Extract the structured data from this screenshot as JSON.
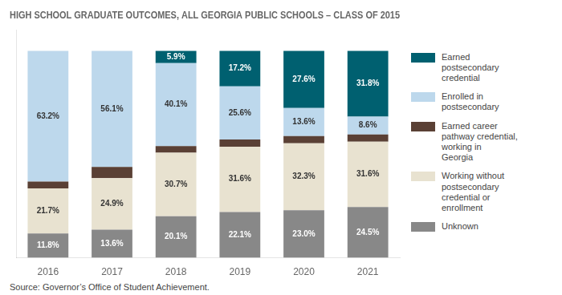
{
  "chart_data": {
    "type": "bar",
    "title": "HIGH SCHOOL GRADUATE OUTCOMES, ALL GEORGIA PUBLIC SCHOOLS – CLASS OF 2015",
    "categories": [
      "2016",
      "2017",
      "2018",
      "2019",
      "2020",
      "2021"
    ],
    "series": [
      {
        "name": "Unknown",
        "color": "#888888",
        "values": [
          11.8,
          13.6,
          20.1,
          22.1,
          23.0,
          24.5
        ],
        "value_labels": [
          "11.8%",
          "13.6%",
          "20.1%",
          "22.1%",
          "23.0%",
          "24.5%"
        ]
      },
      {
        "name": "Working without\npostsecondary\ncredential or\nenrollment",
        "color": "#E8E2D0",
        "values": [
          21.7,
          24.9,
          30.7,
          31.6,
          32.3,
          31.6
        ],
        "value_labels": [
          "21.7%",
          "24.9%",
          "30.7%",
          "31.6%",
          "32.3%",
          "31.6%"
        ]
      },
      {
        "name": "Earned career\npathway credential,\nworking in\nGeorgia",
        "color": "#5A4035",
        "values": [
          3.3,
          5.4,
          3.2,
          3.5,
          3.5,
          3.5
        ]
      },
      {
        "name": "Enrolled in\npostsecondary",
        "color": "#BDD8EC",
        "values": [
          63.2,
          56.1,
          40.1,
          25.6,
          13.6,
          8.6
        ],
        "value_labels": [
          "63.2%",
          "56.1%",
          "40.1%",
          "25.6%",
          "13.6%",
          "8.6%"
        ]
      },
      {
        "name": "Earned\npostsecondary\ncredential",
        "color": "#006070",
        "values": [
          0.0,
          0.0,
          5.9,
          17.2,
          27.6,
          31.8
        ],
        "value_labels": [
          null,
          null,
          "5.9%",
          "17.2%",
          "27.6%",
          "31.8%"
        ]
      }
    ],
    "stacked": true,
    "data_labels": true,
    "tick_labels": "x",
    "grid": false,
    "legend": "right",
    "ylim": [
      0,
      110
    ],
    "annotations": [
      "Source: Governor’s Office of Student Achievement."
    ]
  }
}
